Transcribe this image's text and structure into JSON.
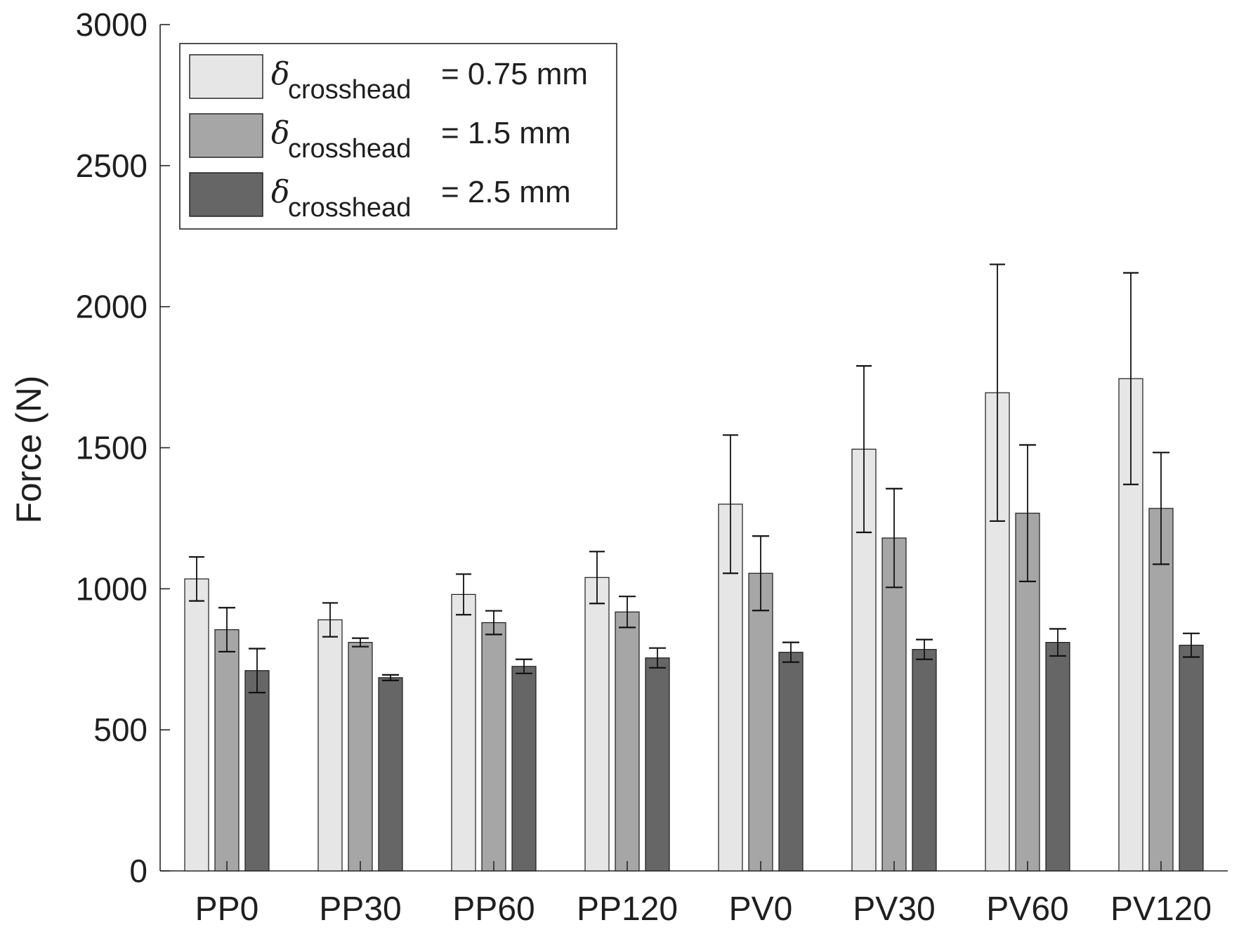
{
  "chart_data": {
    "type": "bar",
    "categories": [
      "PP0",
      "PP30",
      "PP60",
      "PP120",
      "PV0",
      "PV30",
      "PV60",
      "PV120"
    ],
    "ylabel": "Force (N)",
    "xlabel": "",
    "title": "",
    "ylim": [
      0,
      3000
    ],
    "yticks": [
      0,
      500,
      1000,
      1500,
      2000,
      2500,
      3000
    ],
    "grid": false,
    "legend_position": "top-left",
    "series": [
      {
        "legend_symbol": "δ",
        "legend_subscript": "crosshead",
        "legend_value": "= 0.75 mm",
        "color": "#e6e6e6",
        "values": [
          1035,
          890,
          980,
          1040,
          1300,
          1495,
          1695,
          1745
        ],
        "errors": [
          78,
          60,
          72,
          92,
          245,
          295,
          455,
          375
        ]
      },
      {
        "legend_symbol": "δ",
        "legend_subscript": "crosshead",
        "legend_value": "= 1.5 mm",
        "color": "#a6a6a6",
        "values": [
          855,
          810,
          880,
          918,
          1055,
          1180,
          1268,
          1285
        ],
        "errors": [
          78,
          15,
          42,
          55,
          132,
          175,
          242,
          198
        ]
      },
      {
        "legend_symbol": "δ",
        "legend_subscript": "crosshead",
        "legend_value": "= 2.5 mm",
        "color": "#666666",
        "values": [
          710,
          685,
          725,
          755,
          775,
          785,
          810,
          800
        ],
        "errors": [
          78,
          10,
          25,
          35,
          35,
          35,
          48,
          42
        ]
      }
    ]
  }
}
